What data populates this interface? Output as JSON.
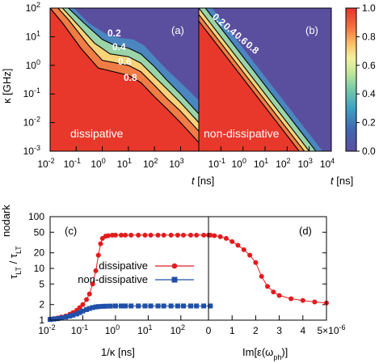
{
  "chart_data": [
    {
      "type": "heatmap",
      "panel": "(a)",
      "annotation": "dissipative",
      "xlabel": "t [ns]",
      "ylabel": "κ [GHz]",
      "x_scale": "log",
      "y_scale": "log",
      "xlim": [
        0.01,
        5000
      ],
      "ylim": [
        0.001,
        100
      ],
      "x_ticks": [
        "10-2",
        "10-1",
        "100",
        "101",
        "102",
        "103"
      ],
      "y_ticks": [
        "10-3",
        "10-2",
        "10-1",
        "100",
        "101",
        "102"
      ],
      "colorbar": {
        "min": 0.0,
        "max": 1.0,
        "ticks": [
          "0.0",
          "0.2",
          "0.4",
          "0.6",
          "0.8",
          "1.0"
        ]
      },
      "contours": [
        {
          "level": "0.2",
          "points": [
            [
              0.05,
              100
            ],
            [
              0.2,
              30
            ],
            [
              1,
              8
            ],
            [
              3,
              5
            ],
            [
              10,
              4
            ],
            [
              30,
              2.5
            ],
            [
              100,
              0.9
            ],
            [
              300,
              0.3
            ],
            [
              1000,
              0.1
            ],
            [
              5000,
              0.02
            ]
          ]
        },
        {
          "level": "0.4",
          "points": [
            [
              0.03,
              100
            ],
            [
              0.1,
              30
            ],
            [
              0.5,
              6
            ],
            [
              2,
              2.5
            ],
            [
              10,
              2
            ],
            [
              30,
              1.2
            ],
            [
              100,
              0.4
            ],
            [
              300,
              0.15
            ],
            [
              1000,
              0.05
            ],
            [
              5000,
              0.01
            ]
          ]
        },
        {
          "level": "0.6",
          "points": [
            [
              0.02,
              100
            ],
            [
              0.05,
              40
            ],
            [
              0.3,
              5
            ],
            [
              1,
              1.5
            ],
            [
              10,
              1
            ],
            [
              30,
              0.6
            ],
            [
              100,
              0.2
            ],
            [
              300,
              0.07
            ],
            [
              1000,
              0.025
            ],
            [
              5000,
              0.005
            ]
          ]
        },
        {
          "level": "0.8",
          "points": [
            [
              0.01,
              100
            ],
            [
              0.03,
              30
            ],
            [
              0.15,
              4
            ],
            [
              0.7,
              0.8
            ],
            [
              10,
              0.45
            ],
            [
              30,
              0.25
            ],
            [
              100,
              0.08
            ],
            [
              300,
              0.03
            ],
            [
              1000,
              0.01
            ],
            [
              5000,
              0.002
            ]
          ]
        }
      ]
    },
    {
      "type": "heatmap",
      "panel": "(b)",
      "annotation": "non-dissipative",
      "xlabel": "t [ns]",
      "x_scale": "log",
      "y_scale": "log",
      "xlim": [
        0.01,
        10000
      ],
      "ylim": [
        0.001,
        100
      ],
      "x_ticks": [
        "10-2",
        "10-1",
        "100",
        "101",
        "102",
        "103",
        "104"
      ],
      "contours": [
        {
          "level": "0.2",
          "points": [
            [
              0.02,
              100
            ],
            [
              10000,
              0.0002
            ]
          ]
        },
        {
          "level": "0.4",
          "points": [
            [
              0.01,
              100
            ],
            [
              10000,
              0.0001
            ]
          ]
        },
        {
          "level": "0.6",
          "points": [
            [
              0.01,
              60
            ],
            [
              10000,
              6e-05
            ]
          ]
        },
        {
          "level": "0.8",
          "points": [
            [
              0.01,
              35
            ],
            [
              10000,
              3.5e-05
            ]
          ]
        }
      ]
    },
    {
      "type": "scatter",
      "panel": "(c)",
      "xlabel": "1/κ [ns]",
      "ylabel": "τLT / τLT nodark",
      "x_scale": "log",
      "y_scale": "log",
      "xlim": [
        0.01,
        1000
      ],
      "ylim": [
        1,
        100
      ],
      "x_ticks": [
        "10-2",
        "10-1",
        "100",
        "101",
        "102"
      ],
      "y_ticks": [
        "1",
        "2",
        "5",
        "10",
        "20",
        "50",
        "100"
      ],
      "series": [
        {
          "name": "dissipative",
          "color": "#e41a1c",
          "marker": "circle",
          "x": [
            0.01,
            0.013,
            0.017,
            0.022,
            0.03,
            0.04,
            0.05,
            0.065,
            0.08,
            0.1,
            0.13,
            0.16,
            0.2,
            0.25,
            0.3,
            0.35,
            0.4,
            0.5,
            0.6,
            0.8,
            1,
            1.5,
            2,
            3,
            5,
            8,
            12,
            20,
            30,
            50,
            80,
            120,
            200,
            300,
            500,
            800
          ],
          "y": [
            1.05,
            1.07,
            1.1,
            1.15,
            1.2,
            1.3,
            1.4,
            1.55,
            1.75,
            2.0,
            2.5,
            3.2,
            5.0,
            9.0,
            18,
            30,
            38,
            42,
            43,
            44,
            44,
            44,
            44,
            44,
            44,
            44,
            44,
            44,
            44,
            44,
            44,
            44,
            44,
            44,
            44,
            44
          ]
        },
        {
          "name": "non-dissipative",
          "color": "#1f4fa8",
          "marker": "square",
          "x": [
            0.01,
            0.013,
            0.017,
            0.022,
            0.03,
            0.04,
            0.05,
            0.065,
            0.08,
            0.1,
            0.13,
            0.16,
            0.2,
            0.25,
            0.3,
            0.4,
            0.5,
            0.7,
            1,
            1.5,
            2,
            3,
            5,
            8,
            12,
            20,
            30,
            50,
            80,
            120,
            200,
            300,
            500,
            800
          ],
          "y": [
            1.03,
            1.05,
            1.07,
            1.1,
            1.15,
            1.2,
            1.25,
            1.32,
            1.4,
            1.5,
            1.6,
            1.68,
            1.75,
            1.8,
            1.83,
            1.85,
            1.86,
            1.87,
            1.88,
            1.88,
            1.88,
            1.88,
            1.88,
            1.88,
            1.88,
            1.88,
            1.88,
            1.88,
            1.88,
            1.88,
            1.88,
            1.88,
            1.88,
            1.88
          ]
        }
      ]
    },
    {
      "type": "line",
      "panel": "(d)",
      "xlabel": "Im[ε(ωph)]",
      "x_scale": "linear",
      "y_scale": "log",
      "xlim": [
        0,
        5e-06
      ],
      "ylim": [
        1,
        100
      ],
      "x_ticks": [
        "0",
        "1",
        "2",
        "3",
        "4",
        "5×10-6"
      ],
      "series": [
        {
          "name": "dissipative",
          "color": "#e41a1c",
          "marker": "circle",
          "x": [
            0,
            2.5e-07,
            5e-07,
            7.5e-07,
            1e-06,
            1.25e-06,
            1.5e-06,
            1.75e-06,
            2e-06,
            2.25e-06,
            2.5e-06,
            2.75e-06,
            3e-06,
            3.5e-06,
            4e-06,
            4.5e-06,
            5e-06
          ],
          "y": [
            44,
            43,
            41,
            38,
            33,
            28,
            23,
            18,
            13,
            7,
            4.5,
            3.5,
            3.0,
            2.6,
            2.4,
            2.25,
            2.15
          ]
        }
      ]
    }
  ],
  "labels": {
    "panel_a": "(a)",
    "panel_b": "(b)",
    "panel_c": "(c)",
    "panel_d": "(d)",
    "annot_a": "dissipative",
    "annot_b": "non-dissipative",
    "xlabel_top_t": "t",
    "xlabel_top_unit": "[ns]",
    "ylabel_top": "κ [GHz]",
    "xlabel_c": "1/κ [ns]",
    "xlabel_d": "Im[ε(ω",
    "xlabel_d_sub": "ph",
    "xlabel_d_end": ")]",
    "ylabel_c_tau": "τ",
    "ylabel_c_sub": "LT",
    "ylabel_c_slash": " / τ",
    "ylabel_c_sub2": "LT",
    "ylabel_c_sup2": "nodark",
    "legend_dissipative": "dissipative",
    "legend_nondissipative": "non-dissipative",
    "contour_a": [
      "0.2",
      "0.4",
      "0.6",
      "0.8"
    ],
    "contour_b": [
      "0.2",
      "0.4",
      "0.6",
      "0.8"
    ],
    "colorbar_ticks": [
      "0.0",
      "0.2",
      "0.4",
      "0.6",
      "0.8",
      "1.0"
    ],
    "d_x_ticks": [
      "0",
      "1",
      "2",
      "3",
      "4"
    ],
    "d_x_last": "5×10",
    "d_x_last_exp": "-6",
    "c_y_ticks": [
      "1",
      "2",
      "5",
      "10",
      "20",
      "50",
      "100"
    ]
  }
}
